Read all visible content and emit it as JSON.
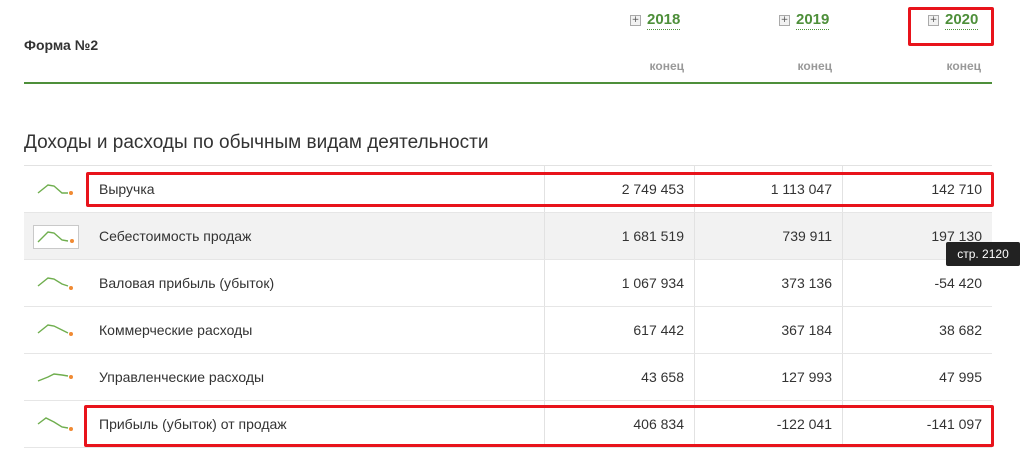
{
  "header": {
    "form_title": "Форма №2",
    "years": [
      {
        "expand_icon": "+",
        "label": "2018",
        "period": "конец"
      },
      {
        "expand_icon": "+",
        "label": "2019",
        "period": "конец"
      },
      {
        "expand_icon": "+",
        "label": "2020",
        "period": "конец"
      }
    ]
  },
  "section": {
    "title": "Доходы и расходы по обычным видам деятельности"
  },
  "rows": [
    {
      "label": "Выручка",
      "values": [
        "2 749 453",
        "1 113 047",
        "142 710"
      ]
    },
    {
      "label": "Себестоимость продаж",
      "values": [
        "1 681 519",
        "739 911",
        "197 130"
      ]
    },
    {
      "label": "Валовая прибыль (убыток)",
      "values": [
        "1 067 934",
        "373 136",
        "-54 420"
      ]
    },
    {
      "label": "Коммерческие расходы",
      "values": [
        "617 442",
        "367 184",
        "38 682"
      ]
    },
    {
      "label": "Управленческие расходы",
      "values": [
        "43 658",
        "127 993",
        "47 995"
      ]
    },
    {
      "label": "Прибыль (убыток) от продаж",
      "values": [
        "406 834",
        "-122 041",
        "-141 097"
      ]
    }
  ],
  "tooltip": {
    "text": "стр. 2120"
  },
  "colors": {
    "accent": "#4e8f3a",
    "highlight": "#e8131b",
    "spark_dot": "#f08a33"
  }
}
